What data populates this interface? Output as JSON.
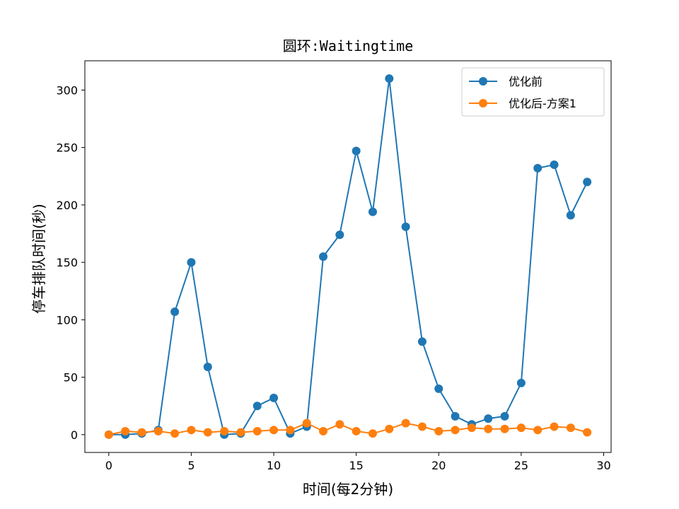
{
  "chart_data": {
    "type": "line",
    "title": "圆环:Waitingtime",
    "xlabel": "时间(每2分钟)",
    "ylabel": "停车排队时间(秒)",
    "xlim": [
      -1.45,
      30.45
    ],
    "ylim": [
      -15.5,
      325.5
    ],
    "xticks": [
      0,
      5,
      10,
      15,
      20,
      25,
      30
    ],
    "yticks": [
      0,
      50,
      100,
      150,
      200,
      250,
      300
    ],
    "legend_position": "top-right",
    "x": [
      0,
      1,
      2,
      3,
      4,
      5,
      6,
      7,
      8,
      9,
      10,
      11,
      12,
      13,
      14,
      15,
      16,
      17,
      18,
      19,
      20,
      21,
      22,
      23,
      24,
      25,
      26,
      27,
      28,
      29
    ],
    "series": [
      {
        "name": "优化前",
        "color": "#1f77b4",
        "values": [
          0,
          0,
          1,
          4,
          107,
          150,
          59,
          0,
          1,
          25,
          32,
          1,
          7,
          155,
          174,
          247,
          194,
          310,
          181,
          81,
          40,
          16,
          9,
          14,
          16,
          45,
          232,
          235,
          191,
          220
        ]
      },
      {
        "name": "优化后-方案1",
        "color": "#ff7f0e",
        "values": [
          0,
          3,
          2,
          3,
          1,
          4,
          2,
          3,
          2,
          3,
          4,
          4,
          10,
          3,
          9,
          3,
          1,
          5,
          10,
          7,
          3,
          4,
          6,
          5,
          5,
          6,
          4,
          7,
          6,
          2
        ]
      }
    ]
  }
}
